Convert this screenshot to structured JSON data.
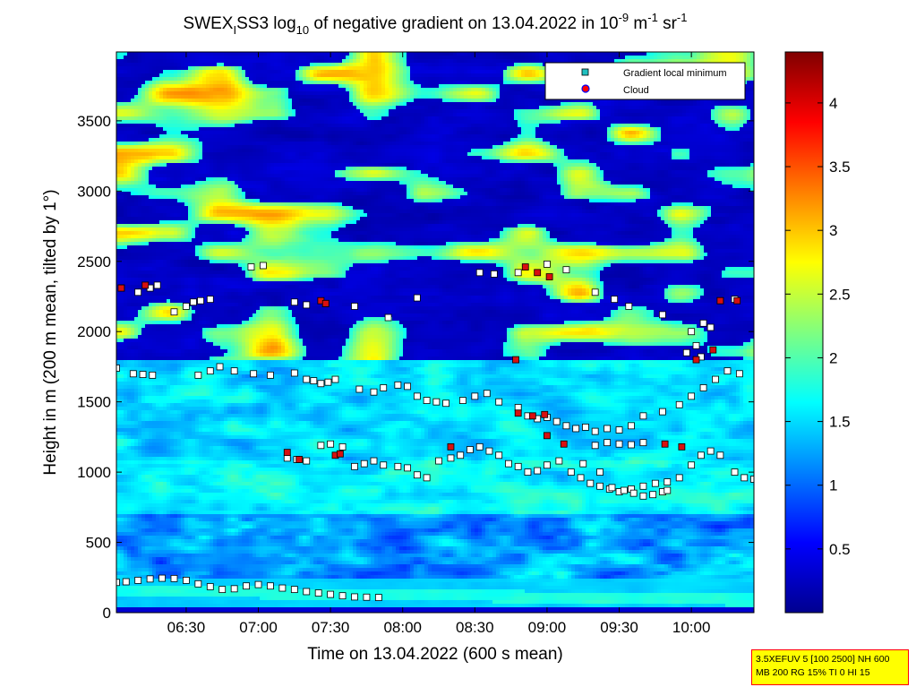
{
  "chart_data": {
    "type": "heatmap",
    "title_parts": [
      "SWEX",
      "I",
      "SS3 log",
      "10",
      " of negative gradient on 13.04.2022 in 10",
      "-9",
      " m",
      "-1",
      " sr",
      "-1"
    ],
    "xlabel": "Time on 13.04.2022 (600 s mean)",
    "ylabel": "Height in m (200 m mean, tilted by 1°)",
    "x_ticks": [
      "06:30",
      "07:00",
      "07:30",
      "08:00",
      "08:30",
      "09:00",
      "09:30",
      "10:00"
    ],
    "x_tick_minutes": [
      390,
      420,
      450,
      480,
      510,
      540,
      570,
      600
    ],
    "xlim_minutes": [
      361,
      626
    ],
    "y_ticks": [
      "0",
      "500",
      "1000",
      "1500",
      "2000",
      "2500",
      "3000",
      "3500"
    ],
    "y_tick_values": [
      0,
      500,
      1000,
      1500,
      2000,
      2500,
      3000,
      3500
    ],
    "ylim": [
      0,
      3990
    ],
    "colorbar": {
      "ticks": [
        "0.5",
        "1",
        "1.5",
        "2",
        "2.5",
        "3",
        "3.5",
        "4"
      ],
      "tick_values": [
        0.5,
        1,
        1.5,
        2,
        2.5,
        3,
        3.5,
        4
      ],
      "range": [
        0,
        4.4
      ],
      "colormap": "jet"
    },
    "legend": {
      "position": "top-right",
      "entries": [
        {
          "label": "Gradient local minimum",
          "marker": "square",
          "color": "#20c0c0"
        },
        {
          "label": "Cloud",
          "marker": "circle",
          "color": "#ff0000"
        }
      ]
    },
    "series": [
      {
        "name": "Gradient local minimum",
        "points": [
          [
            361,
            215
          ],
          [
            365,
            220
          ],
          [
            370,
            230
          ],
          [
            375,
            240
          ],
          [
            380,
            245
          ],
          [
            385,
            243
          ],
          [
            390,
            230
          ],
          [
            395,
            205
          ],
          [
            400,
            185
          ],
          [
            405,
            165
          ],
          [
            410,
            170
          ],
          [
            415,
            190
          ],
          [
            420,
            200
          ],
          [
            425,
            190
          ],
          [
            430,
            175
          ],
          [
            435,
            165
          ],
          [
            440,
            150
          ],
          [
            445,
            140
          ],
          [
            450,
            130
          ],
          [
            455,
            120
          ],
          [
            460,
            112
          ],
          [
            465,
            110
          ],
          [
            470,
            108
          ],
          [
            361,
            1740
          ],
          [
            368,
            1700
          ],
          [
            372,
            1695
          ],
          [
            376,
            1690
          ],
          [
            395,
            1690
          ],
          [
            400,
            1720
          ],
          [
            404,
            1750
          ],
          [
            410,
            1720
          ],
          [
            418,
            1700
          ],
          [
            425,
            1690
          ],
          [
            435,
            1705
          ],
          [
            440,
            1660
          ],
          [
            443,
            1650
          ],
          [
            446,
            1630
          ],
          [
            449,
            1640
          ],
          [
            452,
            1660
          ],
          [
            462,
            1590
          ],
          [
            468,
            1570
          ],
          [
            472,
            1600
          ],
          [
            478,
            1620
          ],
          [
            482,
            1610
          ],
          [
            486,
            1540
          ],
          [
            490,
            1510
          ],
          [
            494,
            1500
          ],
          [
            498,
            1490
          ],
          [
            505,
            1510
          ],
          [
            510,
            1540
          ],
          [
            515,
            1560
          ],
          [
            520,
            1500
          ],
          [
            528,
            1460
          ],
          [
            532,
            1400
          ],
          [
            536,
            1380
          ],
          [
            540,
            1390
          ],
          [
            544,
            1360
          ],
          [
            548,
            1330
          ],
          [
            552,
            1310
          ],
          [
            556,
            1320
          ],
          [
            560,
            1290
          ],
          [
            565,
            1310
          ],
          [
            570,
            1300
          ],
          [
            575,
            1330
          ],
          [
            580,
            1400
          ],
          [
            588,
            1430
          ],
          [
            595,
            1480
          ],
          [
            600,
            1540
          ],
          [
            605,
            1600
          ],
          [
            610,
            1660
          ],
          [
            615,
            1720
          ],
          [
            620,
            1700
          ],
          [
            363,
            2310
          ],
          [
            370,
            2280
          ],
          [
            375,
            2310
          ],
          [
            378,
            2330
          ],
          [
            385,
            2140
          ],
          [
            390,
            2180
          ],
          [
            393,
            2210
          ],
          [
            396,
            2220
          ],
          [
            400,
            2230
          ],
          [
            417,
            2460
          ],
          [
            422,
            2470
          ],
          [
            435,
            2210
          ],
          [
            440,
            2190
          ],
          [
            448,
            2200
          ],
          [
            460,
            2180
          ],
          [
            474,
            2100
          ],
          [
            486,
            2240
          ],
          [
            512,
            2420
          ],
          [
            518,
            2410
          ],
          [
            528,
            2420
          ],
          [
            540,
            2480
          ],
          [
            548,
            2440
          ],
          [
            560,
            2280
          ],
          [
            568,
            2230
          ],
          [
            574,
            2180
          ],
          [
            588,
            2120
          ],
          [
            600,
            2000
          ],
          [
            605,
            2060
          ],
          [
            608,
            2030
          ],
          [
            612,
            2220
          ],
          [
            618,
            2230
          ],
          [
            446,
            1190
          ],
          [
            450,
            1200
          ],
          [
            455,
            1180
          ],
          [
            460,
            1040
          ],
          [
            464,
            1060
          ],
          [
            468,
            1080
          ],
          [
            472,
            1050
          ],
          [
            478,
            1040
          ],
          [
            482,
            1030
          ],
          [
            486,
            980
          ],
          [
            490,
            960
          ],
          [
            495,
            1080
          ],
          [
            500,
            1100
          ],
          [
            504,
            1120
          ],
          [
            508,
            1160
          ],
          [
            512,
            1180
          ],
          [
            516,
            1150
          ],
          [
            520,
            1120
          ],
          [
            524,
            1060
          ],
          [
            528,
            1040
          ],
          [
            532,
            1000
          ],
          [
            536,
            1010
          ],
          [
            540,
            1050
          ],
          [
            545,
            1080
          ],
          [
            550,
            1000
          ],
          [
            554,
            960
          ],
          [
            558,
            920
          ],
          [
            562,
            900
          ],
          [
            566,
            880
          ],
          [
            570,
            860
          ],
          [
            575,
            880
          ],
          [
            580,
            900
          ],
          [
            585,
            920
          ],
          [
            590,
            930
          ],
          [
            595,
            960
          ],
          [
            600,
            1050
          ],
          [
            604,
            1120
          ],
          [
            608,
            1150
          ],
          [
            612,
            1120
          ],
          [
            618,
            1000
          ],
          [
            622,
            960
          ],
          [
            626,
            950
          ],
          [
            555,
            1060
          ],
          [
            562,
            1000
          ],
          [
            567,
            890
          ],
          [
            572,
            870
          ],
          [
            576,
            850
          ],
          [
            580,
            830
          ],
          [
            584,
            840
          ],
          [
            588,
            860
          ],
          [
            590,
            870
          ],
          [
            432,
            1100
          ],
          [
            436,
            1090
          ],
          [
            440,
            1080
          ],
          [
            560,
            1190
          ],
          [
            565,
            1210
          ],
          [
            570,
            1200
          ],
          [
            575,
            1195
          ],
          [
            580,
            1210
          ],
          [
            598,
            1850
          ],
          [
            602,
            1900
          ],
          [
            604,
            1820
          ]
        ]
      },
      {
        "name": "Cloud",
        "points": [
          [
            363,
            2310
          ],
          [
            373,
            2330
          ],
          [
            432,
            1140
          ],
          [
            437,
            1090
          ],
          [
            446,
            2220
          ],
          [
            448,
            2200
          ],
          [
            500,
            1180
          ],
          [
            531,
            2460
          ],
          [
            536,
            2420
          ],
          [
            541,
            2390
          ],
          [
            527,
            1800
          ],
          [
            528,
            1420
          ],
          [
            534,
            1400
          ],
          [
            539,
            1410
          ],
          [
            540,
            1260
          ],
          [
            547,
            1200
          ],
          [
            602,
            1800
          ],
          [
            612,
            2220
          ],
          [
            619,
            2220
          ],
          [
            609,
            1870
          ],
          [
            589,
            1200
          ],
          [
            596,
            1180
          ],
          [
            452,
            1120
          ],
          [
            454,
            1130
          ]
        ]
      }
    ]
  },
  "infobox": {
    "line1": "3.5XEFUV 5 [100 2500] NH 600",
    "line2": "MB 200 RG 15% TI 0 HI 15"
  }
}
